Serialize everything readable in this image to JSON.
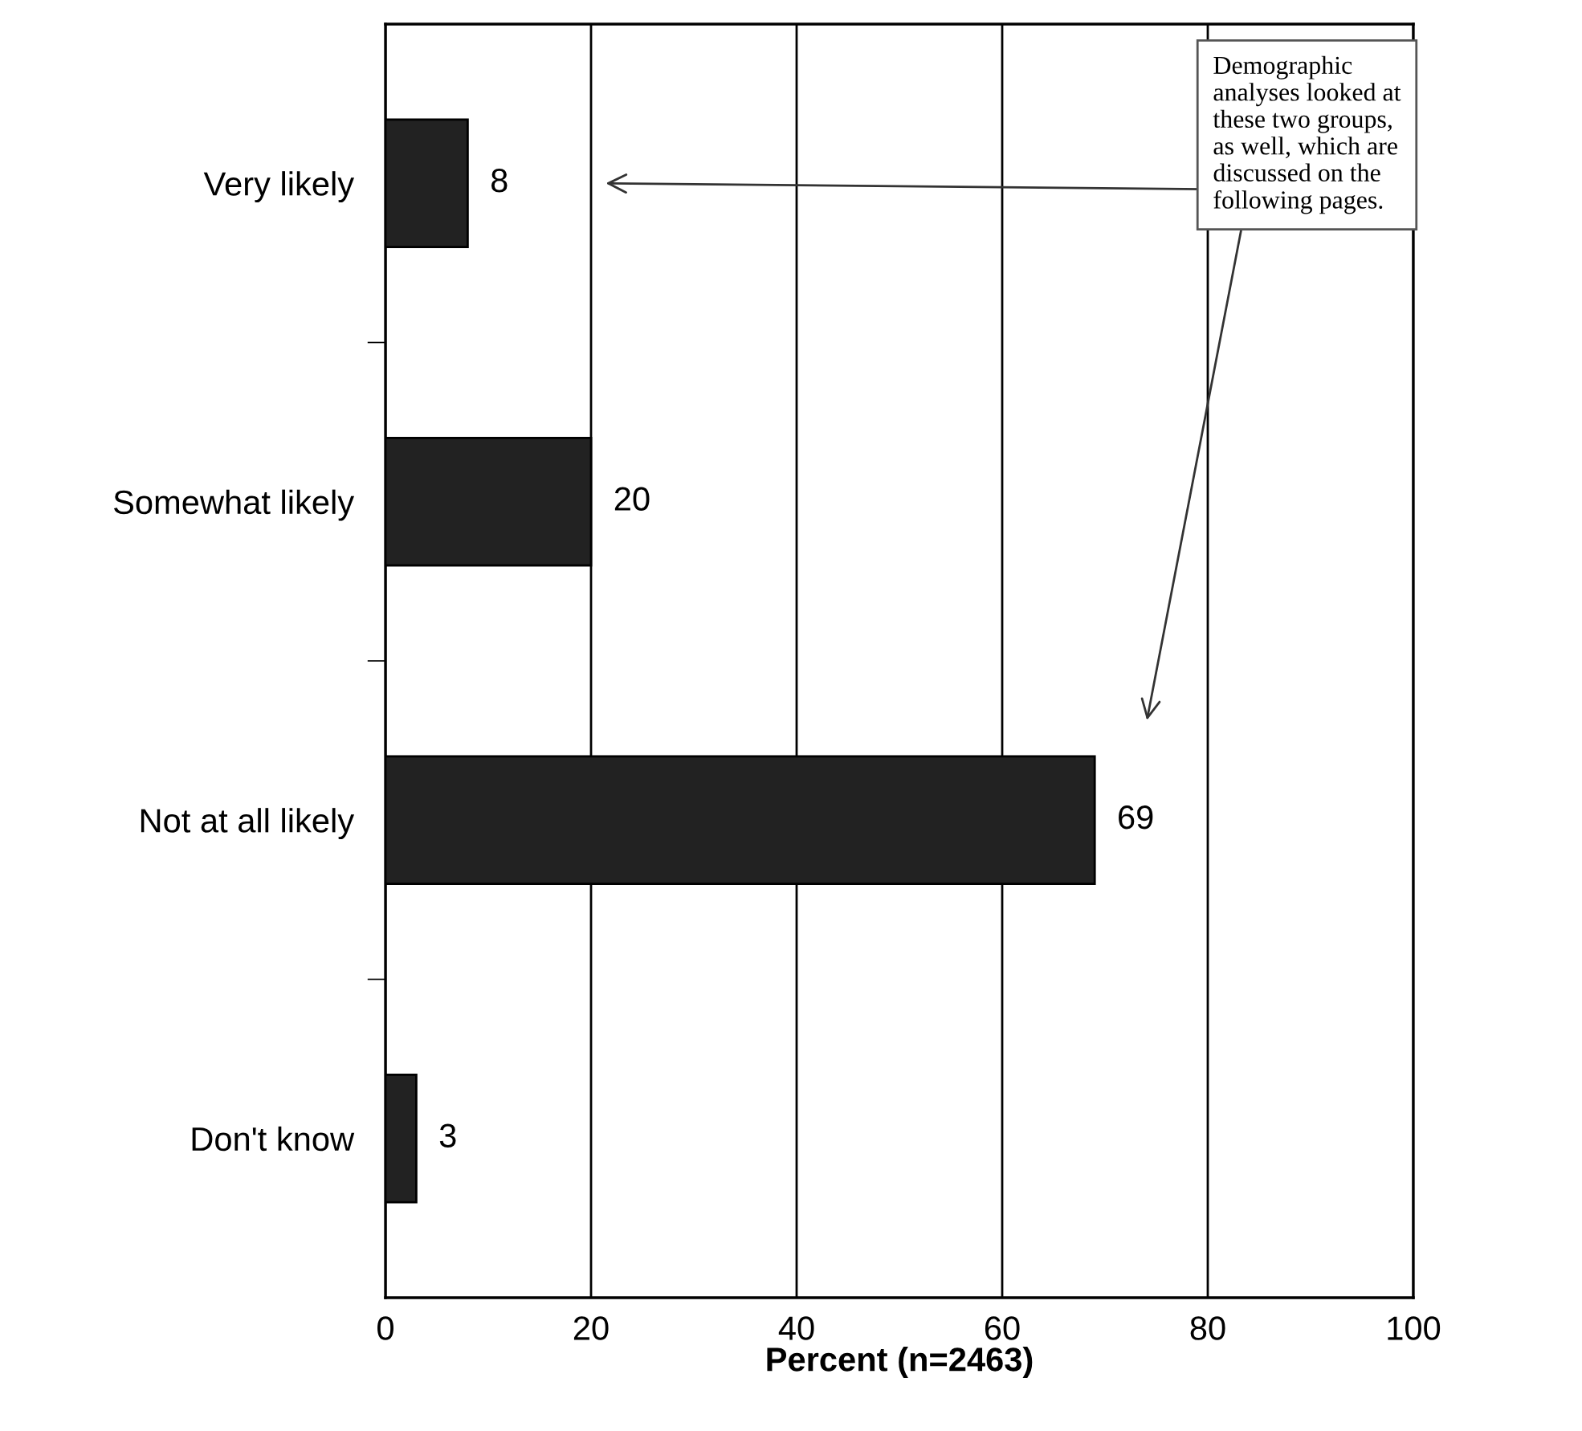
{
  "chart_data": {
    "type": "bar",
    "orientation": "horizontal",
    "categories": [
      "Very likely",
      "Somewhat likely",
      "Not at all likely",
      "Don't know"
    ],
    "values": [
      8,
      20,
      69,
      3
    ],
    "color": "#222222",
    "xlim": [
      0,
      100
    ],
    "xticks": [
      0,
      20,
      40,
      60,
      80,
      100
    ],
    "xlabel": "Percent (n=2463)",
    "grid": "x",
    "data_labels": true,
    "annotations": [
      "Demographic\nanalyses looked at\nthese two groups,\nas well, which are\ndiscussed on the\nfollowing pages."
    ]
  }
}
